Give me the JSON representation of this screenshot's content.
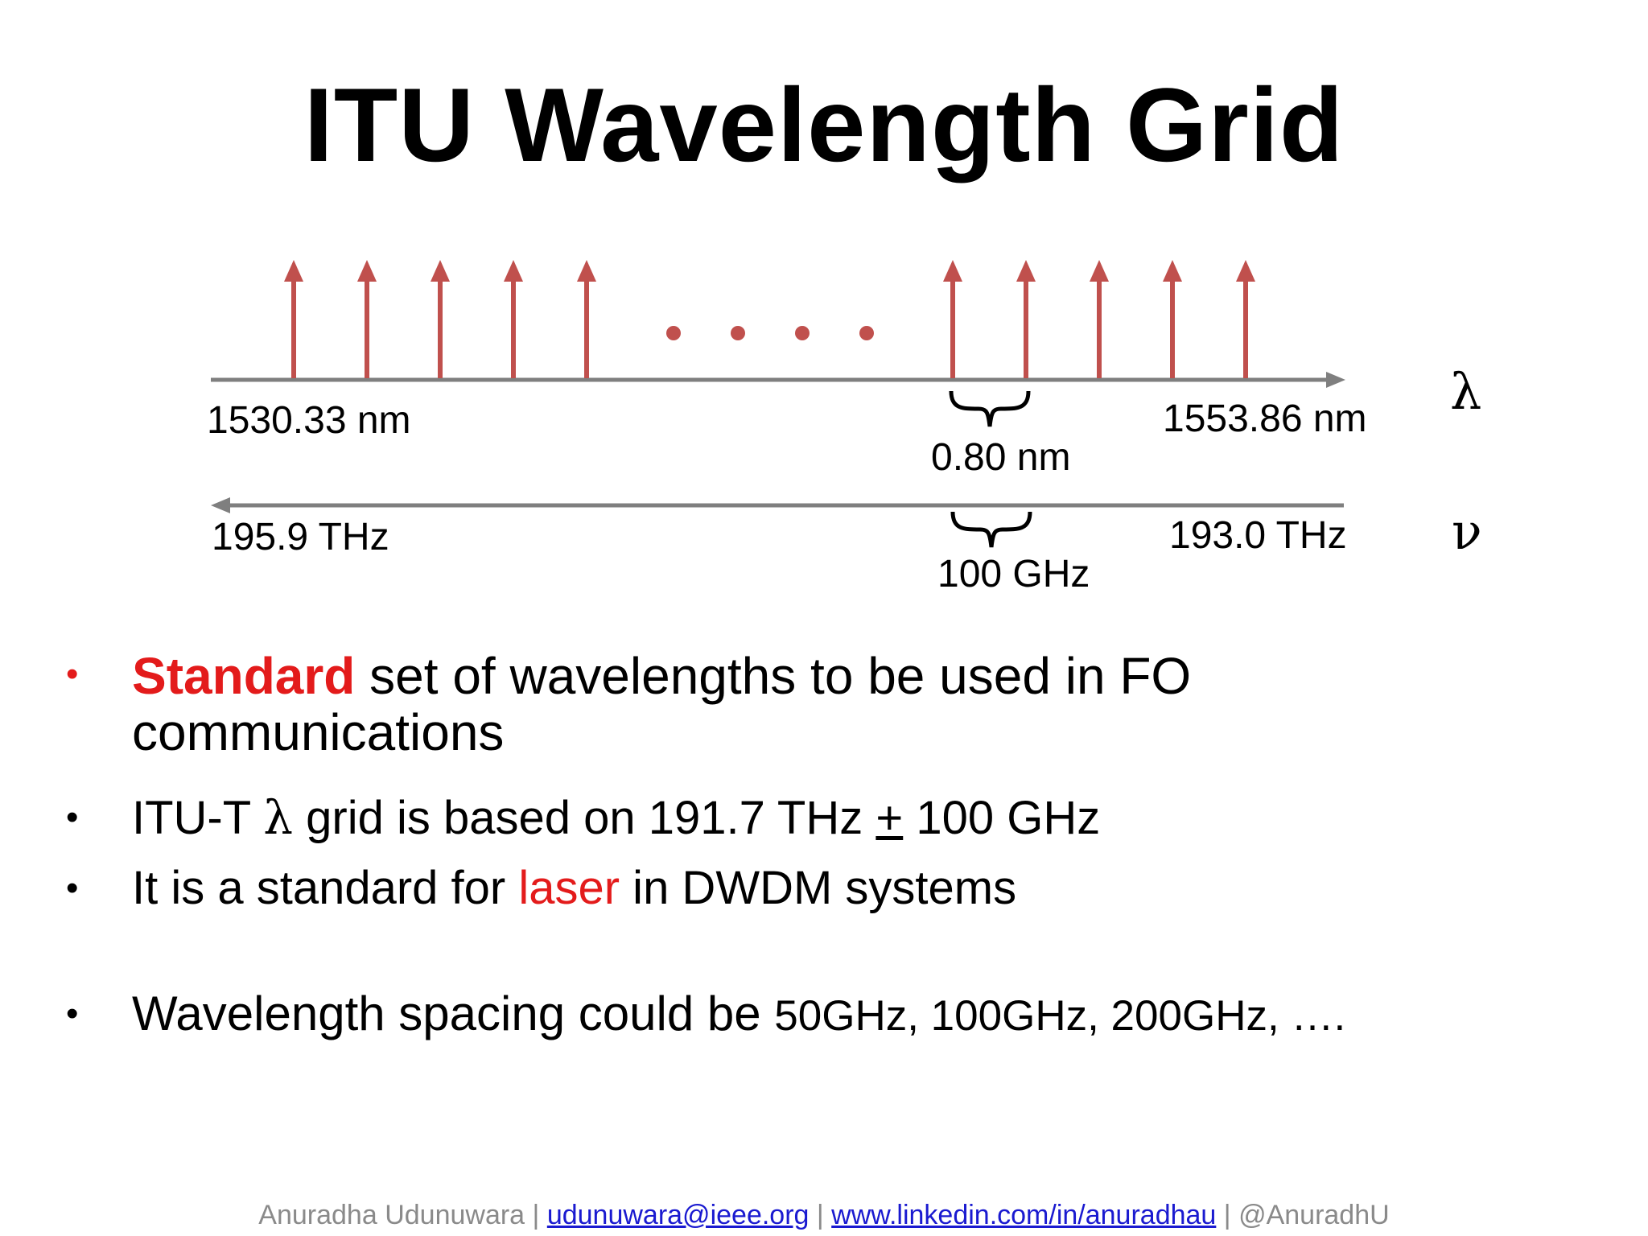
{
  "slide": {
    "title": "ITU Wavelength Grid"
  },
  "diagram": {
    "arrow_color": "#c0504d",
    "axis_color": "#7f7f7f",
    "lambda_start": "1530.33 nm",
    "lambda_end": "1553.86 nm",
    "lambda_spacing": "0.80 nm",
    "lambda_symbol": "λ",
    "freq_start": "195.9 THz",
    "freq_end": "193.0 THz",
    "freq_spacing": "100 GHz",
    "nu_symbol": "ν"
  },
  "bullets": {
    "b1_highlight": "Standard",
    "b1_rest": " set of wavelengths to be used in FO",
    "b1_line2": "communications",
    "b2_pre": "ITU-T ",
    "b2_lambda": "λ",
    "b2_mid": " grid is based on 191.7 THz ",
    "b2_pm": "+",
    "b2_post": " 100 GHz",
    "b3_pre": "It is a standard for ",
    "b3_highlight": "laser",
    "b3_post": " in DWDM systems",
    "b4_pre": "Wavelength spacing could be ",
    "b4_values": "50GHz, 100GHz, 200GHz, ….",
    "bullet_char": "•"
  },
  "footer": {
    "name": "Anuradha Udunuwara | ",
    "email": "udunuwara@ieee.org",
    "sep1": "  | ",
    "linkedin": "www.linkedin.com/in/anuradhau",
    "sep2": "  | @AnuradhU"
  }
}
